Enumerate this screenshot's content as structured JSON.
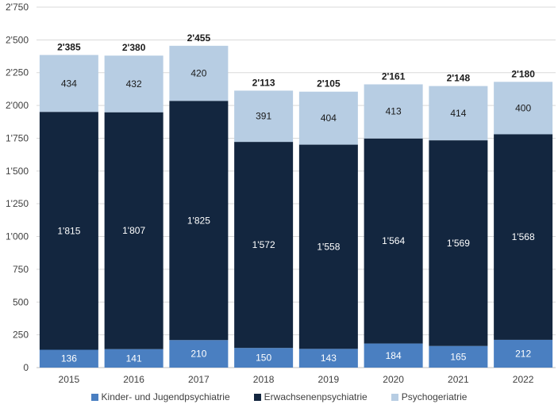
{
  "chart_data": {
    "type": "bar",
    "stacked": true,
    "categories": [
      "2015",
      "2016",
      "2017",
      "2018",
      "2019",
      "2020",
      "2021",
      "2022"
    ],
    "series": [
      {
        "name": "Kinder- und Jugendpsychiatrie",
        "color": "#4a7fc1",
        "text_color": "#ffffff",
        "values": [
          136,
          141,
          210,
          150,
          143,
          184,
          165,
          212
        ],
        "labels": [
          "136",
          "141",
          "210",
          "150",
          "143",
          "184",
          "165",
          "212"
        ]
      },
      {
        "name": "Erwachsenenpsychiatrie",
        "color": "#13263f",
        "text_color": "#ffffff",
        "values": [
          1815,
          1807,
          1825,
          1572,
          1558,
          1564,
          1569,
          1568
        ],
        "labels": [
          "1'815",
          "1'807",
          "1'825",
          "1'572",
          "1'558",
          "1'564",
          "1'569",
          "1'568"
        ]
      },
      {
        "name": "Psychogeriatrie",
        "color": "#b7cde3",
        "text_color": "#1a1a1a",
        "values": [
          434,
          432,
          420,
          391,
          404,
          413,
          414,
          400
        ],
        "labels": [
          "434",
          "432",
          "420",
          "391",
          "404",
          "413",
          "414",
          "400"
        ]
      }
    ],
    "totals": [
      2385,
      2380,
      2455,
      2113,
      2105,
      2161,
      2148,
      2180
    ],
    "total_labels": [
      "2'385",
      "2'380",
      "2'455",
      "2'113",
      "2'105",
      "2'161",
      "2'148",
      "2'180"
    ],
    "ylim": [
      0,
      2750
    ],
    "yticks": [
      0,
      250,
      500,
      750,
      1000,
      1250,
      1500,
      1750,
      2000,
      2250,
      2500,
      2750
    ],
    "ytick_labels": [
      "0",
      "250",
      "500",
      "750",
      "1'000",
      "1'250",
      "1'500",
      "1'750",
      "2'000",
      "2'250",
      "2'500",
      "2'750"
    ],
    "grid": true,
    "legend_position": "bottom",
    "title": "",
    "xlabel": "",
    "ylabel": ""
  }
}
